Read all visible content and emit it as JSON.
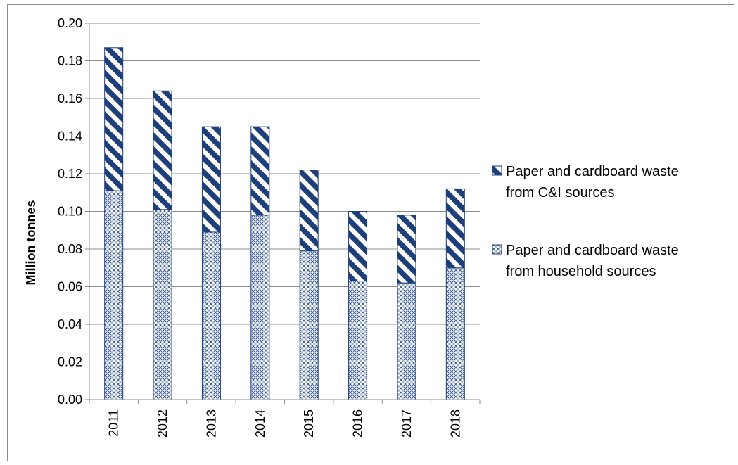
{
  "chart_data": {
    "type": "bar",
    "stacked": true,
    "categories": [
      "2011",
      "2012",
      "2013",
      "2014",
      "2015",
      "2016",
      "2017",
      "2018"
    ],
    "series": [
      {
        "name": "Paper and cardboard waste from household sources",
        "legend_lines": [
          "Paper and cardboard waste",
          "from household sources"
        ],
        "pattern": "crosshatch",
        "color": "#1f3f7a",
        "values": [
          0.111,
          0.101,
          0.089,
          0.098,
          0.079,
          0.063,
          0.062,
          0.07
        ]
      },
      {
        "name": "Paper and cardboard waste from C&I sources",
        "legend_lines": [
          "Paper and cardboard waste",
          "from C&I sources"
        ],
        "pattern": "diagonal-stripes",
        "color": "#1f3f7a",
        "values": [
          0.076,
          0.063,
          0.056,
          0.047,
          0.043,
          0.037,
          0.036,
          0.042
        ]
      }
    ],
    "title": "",
    "xlabel": "",
    "ylabel": "Million tonnes",
    "ylim": [
      0,
      0.2
    ],
    "yticks": [
      "0.00",
      "0.02",
      "0.04",
      "0.06",
      "0.08",
      "0.10",
      "0.12",
      "0.14",
      "0.16",
      "0.18",
      "0.20"
    ],
    "grid": true,
    "legend_position": "right"
  }
}
